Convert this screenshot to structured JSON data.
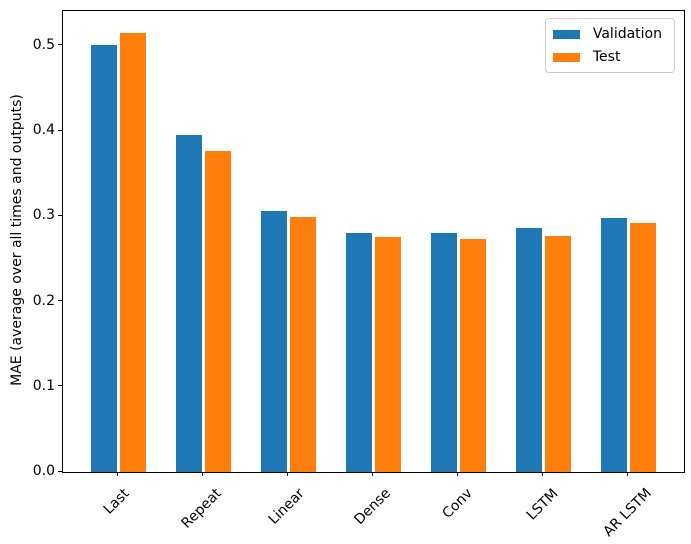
{
  "chart_data": {
    "type": "bar",
    "title": "",
    "xlabel": "",
    "ylabel": "MAE (average over all times and outputs)",
    "categories": [
      "Last",
      "Repeat",
      "Linear",
      "Dense",
      "Conv",
      "LSTM",
      "AR LSTM"
    ],
    "series": [
      {
        "name": "Validation",
        "color": "#1f77b4",
        "values": [
          0.501,
          0.396,
          0.306,
          0.281,
          0.28,
          0.286,
          0.298
        ]
      },
      {
        "name": "Test",
        "color": "#ff7f0e",
        "values": [
          0.515,
          0.377,
          0.299,
          0.276,
          0.274,
          0.277,
          0.292
        ]
      }
    ],
    "ylim": [
      0,
      0.541
    ],
    "yticks": [
      "0.0",
      "0.1",
      "0.2",
      "0.3",
      "0.4",
      "0.5"
    ],
    "xtick_rotation_deg": 45,
    "bar_width_units": 0.3,
    "bar_offsets_units": [
      -0.17,
      0.17
    ],
    "grid": false,
    "legend": {
      "position": "upper right"
    },
    "axis_color": "#000000",
    "background_color": "#ffffff"
  }
}
